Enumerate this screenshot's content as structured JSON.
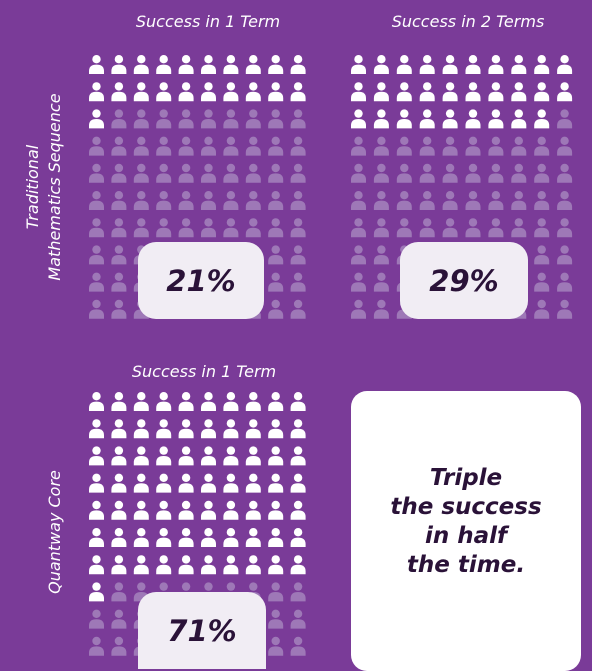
{
  "colors": {
    "background": "#7a3b98",
    "icon_filled": "#ffffff",
    "icon_empty": "#9e78b7",
    "text_dark": "#2a1238"
  },
  "panels": [
    {
      "heading": "Success in 1 Term",
      "filled": 21,
      "total": 100,
      "percent_label": "21%"
    },
    {
      "heading": "Success in 2 Terms",
      "filled": 29,
      "total": 100,
      "percent_label": "29%"
    },
    {
      "heading": "Success in 1 Term",
      "filled": 71,
      "total": 100,
      "percent_label": "71%"
    }
  ],
  "row_labels": {
    "traditional": [
      "Traditional",
      "Mathematics Sequence"
    ],
    "quantway": "Quantway Core"
  },
  "callout": [
    "Triple",
    "the success",
    "in half",
    "the time."
  ],
  "chart_data": {
    "type": "pictogram",
    "icon": "person-icon",
    "units_per_icon": 1,
    "series": [
      {
        "name": "Traditional Mathematics Sequence",
        "categories": [
          "Success in 1 Term",
          "Success in 2 Terms"
        ],
        "values": [
          21,
          29
        ]
      },
      {
        "name": "Quantway Core",
        "categories": [
          "Success in 1 Term"
        ],
        "values": [
          71
        ]
      }
    ]
  }
}
